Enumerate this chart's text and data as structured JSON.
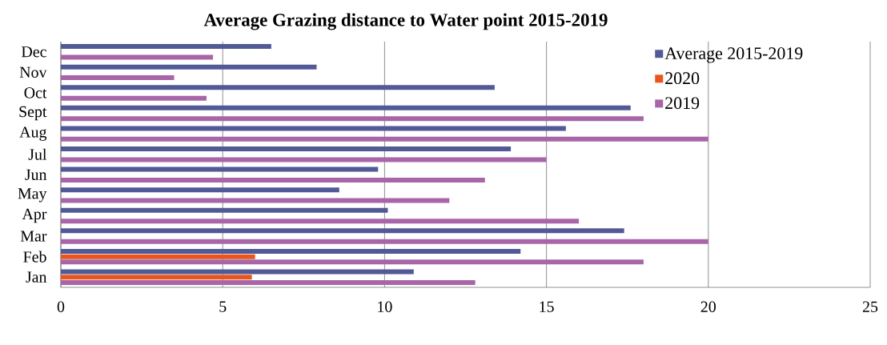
{
  "chart_data": {
    "type": "bar",
    "orientation": "horizontal",
    "title": "Average Grazing distance to Water point 2015-2019",
    "categories": [
      "Dec",
      "Nov",
      "Oct",
      "Sept",
      "Aug",
      "Jul",
      "Jun",
      "May",
      "Apr",
      "Mar",
      "Feb",
      "Jan"
    ],
    "series": [
      {
        "name": "Average 2015-2019",
        "color": "#515a96",
        "values": [
          6.5,
          7.9,
          13.4,
          17.6,
          15.6,
          13.9,
          9.8,
          8.6,
          10.1,
          17.4,
          14.2,
          10.9
        ]
      },
      {
        "name": "2020",
        "color": "#e8561e",
        "values": [
          null,
          null,
          null,
          null,
          null,
          null,
          null,
          null,
          null,
          null,
          6.0,
          5.9
        ]
      },
      {
        "name": "2019",
        "color": "#a866a8",
        "values": [
          4.7,
          3.5,
          4.5,
          18,
          20,
          15,
          13.1,
          12,
          16,
          20,
          18,
          12.8
        ]
      }
    ],
    "xlim": [
      0,
      25
    ],
    "xticks": [
      0,
      5,
      10,
      15,
      20,
      25
    ],
    "grid": "x",
    "legend": "top right"
  }
}
